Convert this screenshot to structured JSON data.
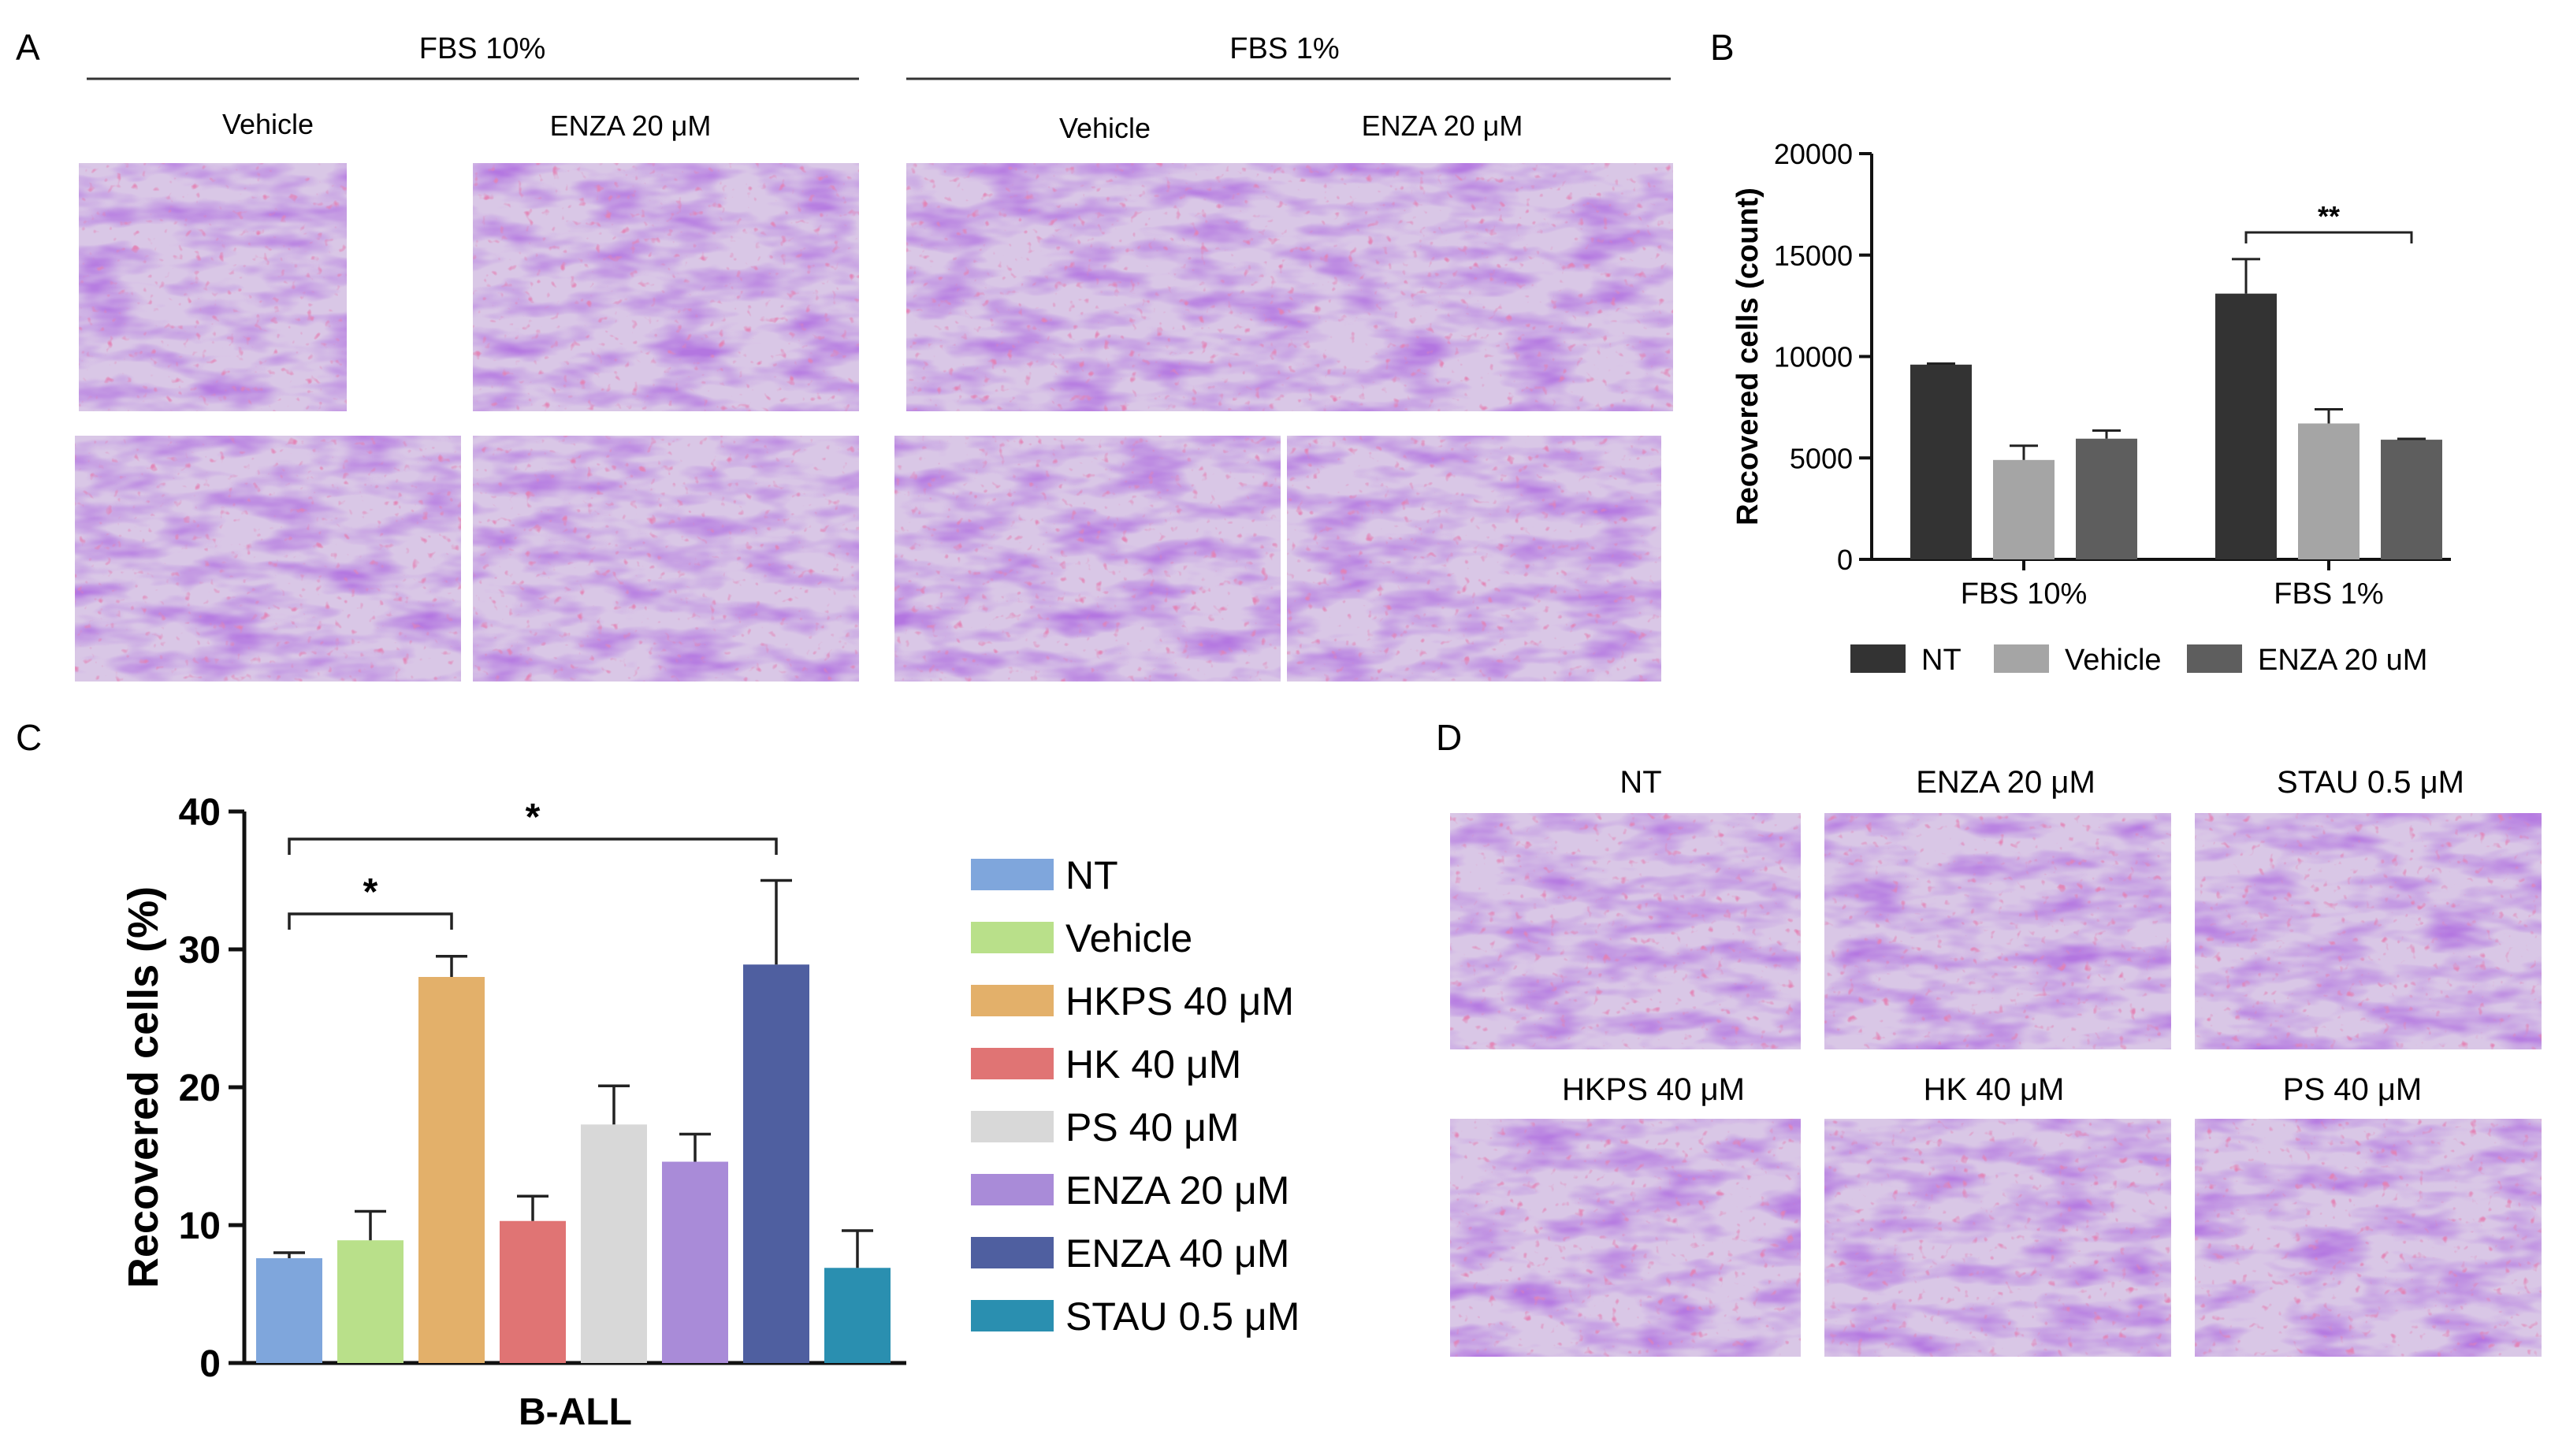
{
  "panels": {
    "a": {
      "letter": "A",
      "groups": [
        {
          "header": "FBS 10%",
          "columns": [
            "Vehicle",
            "ENZA 20 μM"
          ]
        },
        {
          "header": "FBS 1%",
          "columns": [
            "Vehicle",
            "ENZA 20 μM"
          ]
        }
      ]
    },
    "b": {
      "letter": "B"
    },
    "c": {
      "letter": "C"
    },
    "d": {
      "letter": "D",
      "images": [
        "NT",
        "ENZA 20 μM",
        "STAU 0.5 μM",
        "HKPS 40 μM",
        "HK 40 μM",
        "PS 40 μM"
      ]
    }
  },
  "colors": {
    "stain_purple": "#8a2fc4",
    "stain_dark": "#5a1a8c",
    "nuclei_pink": "#c23a7a",
    "bg_stain": "#d9c7e6"
  },
  "chart_data": [
    {
      "id": "panel_b",
      "type": "bar",
      "title": "",
      "xlabel": "",
      "ylabel": "Recovered cells (count)",
      "ylim": [
        0,
        20000
      ],
      "yticks": [
        0,
        5000,
        10000,
        15000,
        20000
      ],
      "categories": [
        "FBS 10%",
        "FBS 1%"
      ],
      "series": [
        {
          "name": "NT",
          "color": "#333333",
          "values": [
            9600,
            13100
          ],
          "errors": [
            50,
            1700
          ]
        },
        {
          "name": "Vehicle",
          "color": "#a5a5a5",
          "values": [
            4900,
            6700
          ],
          "errors": [
            700,
            700
          ]
        },
        {
          "name": "ENZA 20 uM",
          "color": "#5e5e5e",
          "values": [
            5950,
            5900
          ],
          "errors": [
            400,
            40
          ]
        }
      ],
      "legend_position": "bottom",
      "annotations": [
        {
          "text": "**",
          "between": [
            "FBS 1%:NT",
            "FBS 1%:ENZA 20 uM"
          ]
        }
      ]
    },
    {
      "id": "panel_c",
      "type": "bar",
      "title": "",
      "xlabel": "B-ALL",
      "ylabel": "Recovered cells (%)",
      "ylim": [
        0,
        40
      ],
      "yticks": [
        0,
        10,
        20,
        30,
        40
      ],
      "categories": [
        "NT",
        "Vehicle",
        "HKPS 40 μM",
        "HK 40 μM",
        "PS 40 μM",
        "ENZA 20 μM",
        "ENZA 40 μM",
        "STAU 0.5 μM"
      ],
      "values": [
        7.6,
        8.9,
        28.0,
        10.3,
        17.3,
        14.6,
        28.9,
        6.9
      ],
      "errors": [
        0.4,
        2.1,
        1.5,
        1.8,
        2.8,
        2.0,
        6.1,
        2.7
      ],
      "colors": [
        "#7fa6dc",
        "#b9e08a",
        "#e3b06a",
        "#e07474",
        "#d8d8d8",
        "#a98bd8",
        "#4f5fa0",
        "#2a8fb0"
      ],
      "legend_position": "right",
      "annotations": [
        {
          "text": "*",
          "between": [
            "NT",
            "HKPS 40 μM"
          ]
        },
        {
          "text": "*",
          "between": [
            "NT",
            "ENZA 40 μM"
          ]
        }
      ]
    }
  ]
}
